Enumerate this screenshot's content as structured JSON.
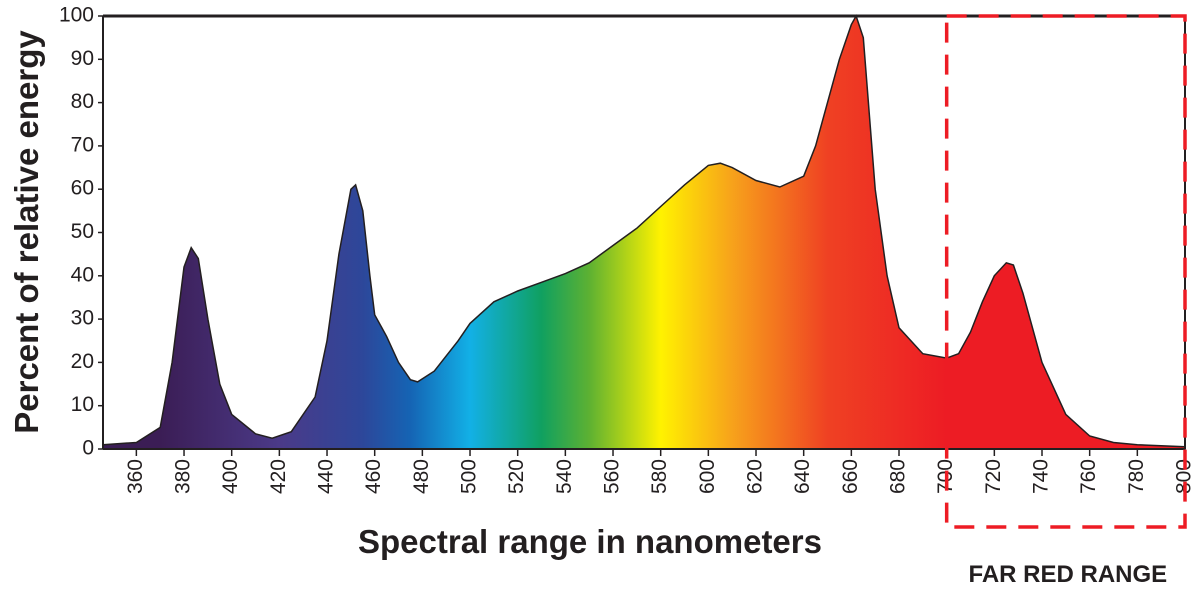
{
  "chart_data": {
    "type": "area",
    "x_label": "Spectral range in nanometers",
    "y_label": "Percent of relative energy",
    "x": [
      346,
      360,
      370,
      375,
      380,
      383,
      386,
      390,
      395,
      400,
      410,
      417,
      425,
      435,
      440,
      445,
      450,
      452,
      455,
      458,
      460,
      465,
      470,
      475,
      478,
      485,
      495,
      500,
      510,
      520,
      530,
      540,
      550,
      560,
      570,
      580,
      590,
      600,
      605,
      610,
      620,
      630,
      640,
      645,
      650,
      655,
      660,
      662,
      665,
      670,
      675,
      680,
      690,
      700,
      705,
      710,
      715,
      720,
      725,
      728,
      732,
      740,
      750,
      760,
      770,
      780,
      800
    ],
    "series": [
      {
        "values": [
          1,
          1.5,
          5,
          20,
          42,
          46.5,
          44,
          30,
          15,
          8,
          3.5,
          2.5,
          4,
          12,
          25,
          45,
          60,
          61,
          55,
          40,
          31,
          26,
          20,
          16,
          15.5,
          18,
          25,
          29,
          34,
          36.5,
          38.5,
          40.5,
          43,
          47,
          51,
          56,
          61,
          65.5,
          66,
          65,
          62,
          60.5,
          63,
          70,
          80,
          90,
          98,
          100,
          95,
          60,
          40,
          28,
          22,
          21,
          22,
          27,
          34,
          40,
          43,
          42.5,
          36,
          20,
          8,
          3,
          1.5,
          1,
          0.5
        ],
        "color": "#231f20"
      }
    ],
    "gradient": [
      {
        "x": 370,
        "color": "#3b1d55"
      },
      {
        "x": 420,
        "color": "#4b3a88"
      },
      {
        "x": 455,
        "color": "#2d479a"
      },
      {
        "x": 475,
        "color": "#1564b4"
      },
      {
        "x": 500,
        "color": "#12b0e6"
      },
      {
        "x": 530,
        "color": "#10a060"
      },
      {
        "x": 550,
        "color": "#5db132"
      },
      {
        "x": 580,
        "color": "#fff200"
      },
      {
        "x": 610,
        "color": "#f7a21b"
      },
      {
        "x": 650,
        "color": "#ef4123"
      },
      {
        "x": 700,
        "color": "#ed1c24"
      }
    ],
    "xlim": [
      346,
      800
    ],
    "ylim": [
      0,
      100
    ],
    "xticks": [
      360,
      380,
      400,
      420,
      440,
      460,
      480,
      500,
      520,
      540,
      560,
      580,
      600,
      620,
      640,
      660,
      680,
      700,
      720,
      740,
      760,
      780,
      800
    ],
    "yticks": [
      0,
      10,
      20,
      30,
      40,
      50,
      60,
      70,
      80,
      90,
      100
    ],
    "annotation": {
      "text": "FAR RED RANGE",
      "x_from": 700,
      "x_to": 800,
      "color": "#ed1c24"
    }
  }
}
